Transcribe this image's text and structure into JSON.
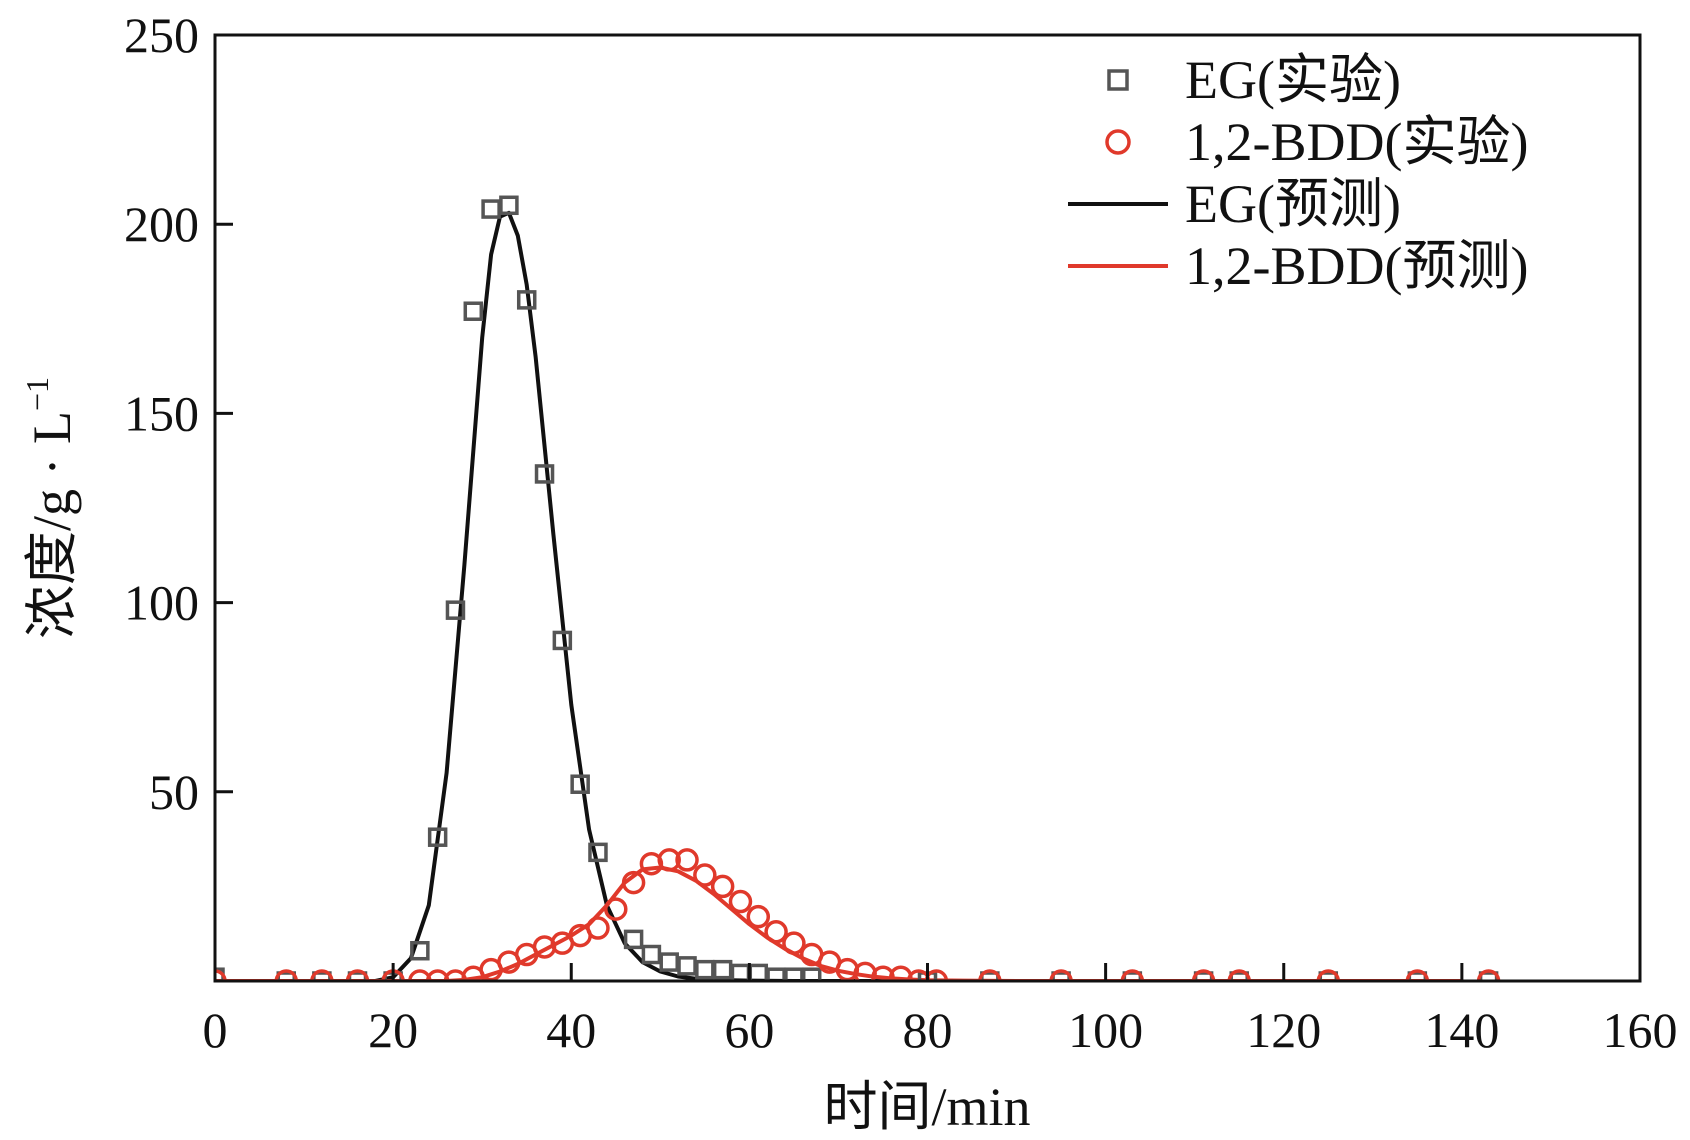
{
  "chart_data": {
    "type": "scatter",
    "xlabel": "时间/min",
    "ylabel": "浓度/g · L",
    "ylabel_superscript": "−1",
    "xlim": [
      0,
      160
    ],
    "ylim": [
      0,
      250
    ],
    "x_ticks": [
      "0",
      "20",
      "40",
      "60",
      "80",
      "100",
      "120",
      "140",
      "160"
    ],
    "y_ticks": [
      "50",
      "100",
      "150",
      "200",
      "250"
    ],
    "grid": false,
    "legend_position": "top-right",
    "series": [
      {
        "name": "EG(实验)",
        "kind": "scatter",
        "marker": "square",
        "color": "#555555",
        "x": [
          0,
          8,
          12,
          16,
          20,
          23,
          25,
          27,
          29,
          31,
          33,
          35,
          37,
          39,
          41,
          43,
          47,
          49,
          51,
          53,
          55,
          57,
          59,
          61,
          63,
          65,
          67,
          80,
          87,
          95,
          103,
          111,
          115,
          125,
          135,
          143
        ],
        "y": [
          1,
          0,
          0,
          0,
          0,
          8,
          38,
          98,
          177,
          204,
          205,
          180,
          134,
          90,
          52,
          34,
          11,
          7,
          5,
          4,
          3,
          3,
          2,
          2,
          1,
          1,
          1,
          0,
          0,
          0,
          0,
          0,
          0,
          0,
          0,
          0
        ]
      },
      {
        "name": "1,2-BDD(实验)",
        "kind": "scatter",
        "marker": "circle",
        "color": "#e0392b",
        "x": [
          0,
          8,
          12,
          16,
          20,
          23,
          25,
          27,
          29,
          31,
          33,
          35,
          37,
          39,
          41,
          43,
          45,
          47,
          49,
          51,
          53,
          55,
          57,
          59,
          61,
          63,
          65,
          67,
          69,
          71,
          73,
          75,
          77,
          79,
          81,
          87,
          95,
          103,
          111,
          115,
          125,
          135,
          143
        ],
        "y": [
          0,
          0,
          0,
          0,
          0,
          0,
          0,
          0,
          1,
          3,
          5,
          7,
          9,
          10,
          12,
          14,
          19,
          26,
          31,
          32,
          32,
          28,
          25,
          21,
          17,
          13,
          10,
          7,
          5,
          3,
          2,
          1,
          1,
          0,
          0,
          0,
          0,
          0,
          0,
          0,
          0,
          0,
          0
        ]
      },
      {
        "name": "EG(预测)",
        "kind": "line",
        "color": "#111111",
        "x": [
          0,
          18,
          20,
          22,
          24,
          26,
          28,
          30,
          31,
          32,
          33,
          34,
          35,
          36,
          38,
          40,
          42,
          44,
          46,
          48,
          50,
          52,
          54,
          56,
          60,
          65,
          70,
          80,
          90,
          100,
          110,
          120,
          130,
          140
        ],
        "y": [
          0,
          0,
          1,
          6,
          20,
          55,
          110,
          170,
          192,
          202,
          203,
          197,
          184,
          165,
          118,
          73,
          40,
          20,
          10,
          5,
          2.5,
          1.2,
          0.6,
          0.3,
          0.1,
          0,
          0,
          0,
          0,
          0,
          0,
          0,
          0,
          0
        ]
      },
      {
        "name": "1,2-BDD(预测)",
        "kind": "line",
        "color": "#e0392b",
        "x": [
          0,
          26,
          28,
          30,
          32,
          34,
          36,
          38,
          40,
          42,
          44,
          46,
          48,
          50,
          52,
          54,
          56,
          58,
          60,
          62,
          64,
          66,
          68,
          70,
          72,
          74,
          76,
          78,
          80,
          84,
          90,
          100,
          110,
          120,
          130,
          140
        ],
        "y": [
          0,
          0,
          0.3,
          1,
          2.5,
          4.5,
          7,
          9.5,
          12,
          15,
          20,
          26,
          29.5,
          30,
          29,
          26.5,
          23,
          19,
          15,
          11.5,
          8.5,
          6,
          4,
          2.7,
          1.8,
          1.1,
          0.7,
          0.4,
          0.2,
          0.1,
          0,
          0,
          0,
          0,
          0,
          0
        ]
      }
    ]
  }
}
